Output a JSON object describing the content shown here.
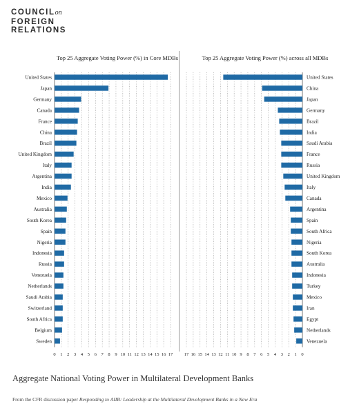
{
  "logo": {
    "line1": "COUNCIL",
    "line1_suffix": "on",
    "line2": "FOREIGN",
    "line3": "RELATIONS"
  },
  "caption": "Aggregate National Voting Power in Multilateral Development Banks",
  "source": {
    "prefix": "From the CFR discussion paper ",
    "title": "Responding to AIIB: Leadership at the Multilateral Development Banks in a New Era"
  },
  "colors": {
    "bar": "#1f6aa5",
    "grid": "#9a9a9a"
  },
  "chart_data": [
    {
      "type": "bar",
      "orientation": "horizontal",
      "title": "Top 25 Aggregate Voting Power (%) in Core MDBs",
      "xlim": [
        0,
        17
      ],
      "ticks": [
        "0",
        "1",
        "2",
        "3",
        "4",
        "5",
        "6",
        "7",
        "8",
        "9",
        "10",
        "11",
        "12",
        "13",
        "14",
        "15",
        "16",
        "17"
      ],
      "grid": "dotted vertical",
      "categories": [
        "United States",
        "Japan",
        "Germany",
        "Canada",
        "France",
        "China",
        "Brazil",
        "United Kingdom",
        "Italy",
        "Argentina",
        "India",
        "Mexico",
        "Australia",
        "South Korea",
        "Spain",
        "Nigeria",
        "Indonesia",
        "Russia",
        "Venezuela",
        "Netherlands",
        "Saudi Arabia",
        "Switzerland",
        "South Africa",
        "Belgium",
        "Sweden"
      ],
      "values": [
        16.6,
        7.9,
        3.9,
        3.6,
        3.4,
        3.3,
        3.2,
        2.8,
        2.5,
        2.5,
        2.4,
        1.9,
        1.8,
        1.7,
        1.6,
        1.6,
        1.4,
        1.4,
        1.3,
        1.3,
        1.2,
        1.2,
        1.2,
        1.1,
        0.8
      ]
    },
    {
      "type": "bar",
      "orientation": "horizontal",
      "direction": "right-to-left",
      "title": "Top 25 Aggregate Voting Power (%) across all MDBs",
      "xlim": [
        0,
        17
      ],
      "ticks": [
        "17",
        "16",
        "15",
        "14",
        "13",
        "12",
        "11",
        "10",
        "9",
        "8",
        "7",
        "6",
        "5",
        "4",
        "3",
        "2",
        "1",
        "0"
      ],
      "grid": "dotted vertical",
      "categories": [
        "United States",
        "China",
        "Japan",
        "Germany",
        "Brazil",
        "India",
        "Saudi Arabia",
        "France",
        "Russia",
        "United Kingdom",
        "Italy",
        "Canada",
        "Argentina",
        "Spain",
        "South Africa",
        "Nigeria",
        "South Korea",
        "Australia",
        "Indonesia",
        "Turkey",
        "Mexico",
        "Iran",
        "Egypt",
        "Netherlands",
        "Venezuela"
      ],
      "values": [
        11.6,
        5.9,
        5.6,
        3.6,
        3.4,
        3.3,
        3.1,
        3.1,
        3.1,
        2.8,
        2.6,
        2.5,
        1.8,
        1.7,
        1.7,
        1.6,
        1.6,
        1.6,
        1.5,
        1.5,
        1.4,
        1.4,
        1.3,
        1.2,
        0.9
      ]
    }
  ]
}
